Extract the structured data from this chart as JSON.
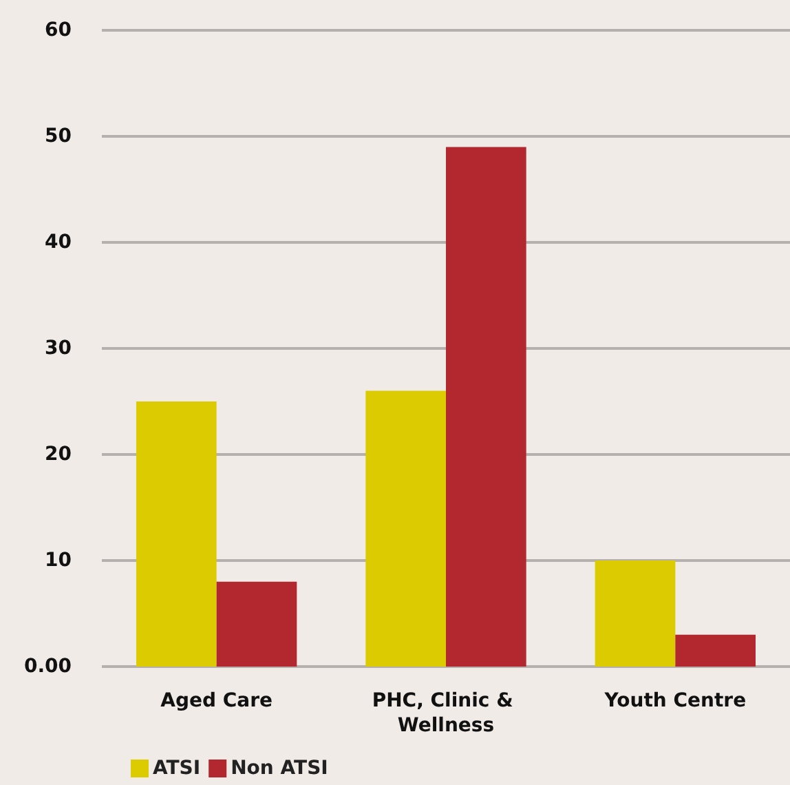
{
  "chart_data": {
    "type": "bar",
    "categories": [
      "Aged Care",
      "PHC, Clinic & Wellness",
      "Youth Centre"
    ],
    "series": [
      {
        "name": "ATSI",
        "color": "#dccb00",
        "values": [
          25,
          26,
          10
        ]
      },
      {
        "name": "Non ATSI",
        "color": "#b3272f",
        "values": [
          8,
          49,
          3
        ]
      }
    ],
    "ylim": [
      0,
      60
    ],
    "yticks": [
      {
        "value": 0,
        "label": "0.00"
      },
      10,
      20,
      30,
      40,
      50,
      60
    ],
    "grid": "y",
    "legend": "bottom left"
  }
}
